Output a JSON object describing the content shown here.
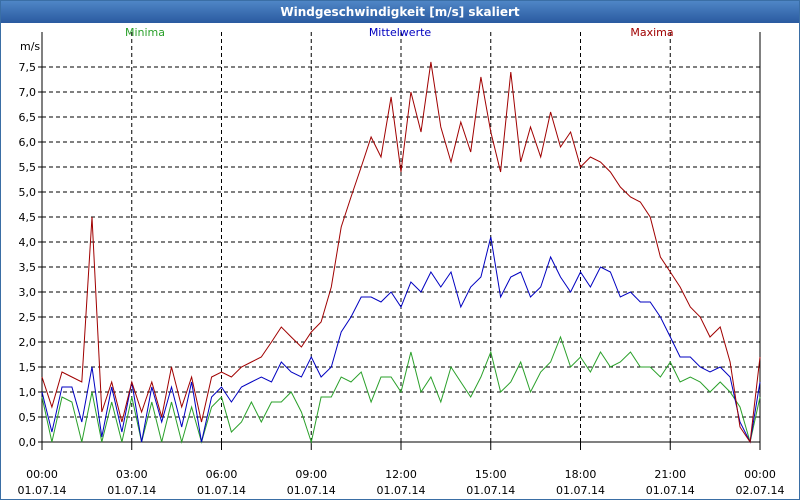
{
  "window": {
    "title": "Windgeschwindigkeit [m/s] skaliert"
  },
  "chart_data": {
    "type": "line",
    "title": "Windgeschwindigkeit [m/s] skaliert",
    "ylabel": "m/s",
    "xlabel": "",
    "ylim": [
      0,
      8
    ],
    "xlim": [
      0,
      24
    ],
    "grid": true,
    "y_ticks": [
      "0,0",
      "0,5",
      "1,0",
      "1,5",
      "2,0",
      "2,5",
      "3,0",
      "3,5",
      "4,0",
      "4,5",
      "5,0",
      "5,5",
      "6,0",
      "6,5",
      "7,0",
      "7,5"
    ],
    "x_ticks": [
      {
        "time": "00:00",
        "date": "01.07.14"
      },
      {
        "time": "03:00",
        "date": "01.07.14"
      },
      {
        "time": "06:00",
        "date": "01.07.14"
      },
      {
        "time": "09:00",
        "date": "01.07.14"
      },
      {
        "time": "12:00",
        "date": "01.07.14"
      },
      {
        "time": "15:00",
        "date": "01.07.14"
      },
      {
        "time": "18:00",
        "date": "01.07.14"
      },
      {
        "time": "21:00",
        "date": "01.07.14"
      },
      {
        "time": "00:00",
        "date": "02.07.14"
      }
    ],
    "series": [
      {
        "name": "Minima",
        "color": "#2aa02a",
        "x": [
          0,
          0.33,
          0.67,
          1,
          1.33,
          1.67,
          2,
          2.33,
          2.67,
          3,
          3.33,
          3.67,
          4,
          4.33,
          4.67,
          5,
          5.33,
          5.67,
          6,
          6.33,
          6.67,
          7,
          7.33,
          7.67,
          8,
          8.33,
          8.67,
          9,
          9.33,
          9.67,
          10,
          10.33,
          10.67,
          11,
          11.33,
          11.67,
          12,
          12.33,
          12.67,
          13,
          13.33,
          13.67,
          14,
          14.33,
          14.67,
          15,
          15.33,
          15.67,
          16,
          16.33,
          16.67,
          17,
          17.33,
          17.67,
          18,
          18.33,
          18.67,
          19,
          19.33,
          19.67,
          20,
          20.33,
          20.67,
          21,
          21.33,
          21.67,
          22,
          22.33,
          22.67,
          23,
          23.33,
          23.67,
          24
        ],
        "values": [
          0.9,
          0,
          0.9,
          0.8,
          0,
          1,
          0,
          0.8,
          0,
          0.9,
          0,
          0.8,
          0,
          0.8,
          0,
          0.7,
          0,
          0.7,
          0.9,
          0.2,
          0.4,
          0.8,
          0.4,
          0.8,
          0.8,
          1,
          0.6,
          0,
          0.9,
          0.9,
          1.3,
          1.2,
          1.4,
          0.8,
          1.3,
          1.3,
          1,
          1.8,
          1,
          1.3,
          0.8,
          1.5,
          1.2,
          0.9,
          1.3,
          1.8,
          1,
          1.2,
          1.6,
          1,
          1.4,
          1.6,
          2.1,
          1.5,
          1.7,
          1.4,
          1.8,
          1.5,
          1.6,
          1.8,
          1.5,
          1.5,
          1.3,
          1.6,
          1.2,
          1.3,
          1.2,
          1,
          1.2,
          1,
          0.7,
          0,
          0.9
        ]
      },
      {
        "name": "Mittelwerte",
        "color": "#0000c0",
        "x": [
          0,
          0.33,
          0.67,
          1,
          1.33,
          1.67,
          2,
          2.33,
          2.67,
          3,
          3.33,
          3.67,
          4,
          4.33,
          4.67,
          5,
          5.33,
          5.67,
          6,
          6.33,
          6.67,
          7,
          7.33,
          7.67,
          8,
          8.33,
          8.67,
          9,
          9.33,
          9.67,
          10,
          10.33,
          10.67,
          11,
          11.33,
          11.67,
          12,
          12.33,
          12.67,
          13,
          13.33,
          13.67,
          14,
          14.33,
          14.67,
          15,
          15.33,
          15.67,
          16,
          16.33,
          16.67,
          17,
          17.33,
          17.67,
          18,
          18.33,
          18.67,
          19,
          19.33,
          19.67,
          20,
          20.33,
          20.67,
          21,
          21.33,
          21.67,
          22,
          22.33,
          22.67,
          23,
          23.33,
          23.67,
          24
        ],
        "values": [
          1,
          0.2,
          1.1,
          1.1,
          0.4,
          1.5,
          0.1,
          1.1,
          0.2,
          1.2,
          0,
          1.1,
          0.4,
          1.1,
          0.3,
          1.2,
          0,
          0.9,
          1.1,
          0.8,
          1.1,
          1.2,
          1.3,
          1.2,
          1.6,
          1.4,
          1.3,
          1.7,
          1.3,
          1.5,
          2.2,
          2.5,
          2.9,
          2.9,
          2.8,
          3,
          2.7,
          3.2,
          3,
          3.4,
          3.1,
          3.4,
          2.7,
          3.1,
          3.3,
          4.1,
          2.9,
          3.3,
          3.4,
          2.9,
          3.1,
          3.7,
          3.3,
          3.0,
          3.4,
          3.1,
          3.5,
          3.4,
          2.9,
          3.0,
          2.8,
          2.8,
          2.5,
          2.1,
          1.7,
          1.7,
          1.5,
          1.4,
          1.5,
          1.3,
          0.4,
          0,
          1.2
        ]
      },
      {
        "name": "Maxima",
        "color": "#a00000",
        "x": [
          0,
          0.33,
          0.67,
          1,
          1.33,
          1.67,
          2,
          2.33,
          2.67,
          3,
          3.33,
          3.67,
          4,
          4.33,
          4.67,
          5,
          5.33,
          5.67,
          6,
          6.33,
          6.67,
          7,
          7.33,
          7.67,
          8,
          8.33,
          8.67,
          9,
          9.33,
          9.67,
          10,
          10.33,
          10.67,
          11,
          11.33,
          11.67,
          12,
          12.33,
          12.67,
          13,
          13.33,
          13.67,
          14,
          14.33,
          14.67,
          15,
          15.33,
          15.67,
          16,
          16.33,
          16.67,
          17,
          17.33,
          17.67,
          18,
          18.33,
          18.67,
          19,
          19.33,
          19.67,
          20,
          20.33,
          20.67,
          21,
          21.33,
          21.67,
          22,
          22.33,
          22.67,
          23,
          23.33,
          23.67,
          24
        ],
        "values": [
          1.3,
          0.7,
          1.4,
          1.3,
          1.2,
          4.5,
          0.6,
          1.2,
          0.4,
          1.2,
          0.6,
          1.2,
          0.5,
          1.5,
          0.7,
          1.3,
          0.4,
          1.3,
          1.4,
          1.3,
          1.5,
          1.6,
          1.7,
          2,
          2.3,
          2.1,
          1.9,
          2.2,
          2.4,
          3.1,
          4.3,
          4.9,
          5.5,
          6.1,
          5.7,
          6.9,
          5.4,
          7,
          6.2,
          7.6,
          6.3,
          5.6,
          6.4,
          5.8,
          7.3,
          6.2,
          5.4,
          7.4,
          5.6,
          6.3,
          5.7,
          6.6,
          5.9,
          6.2,
          5.5,
          5.7,
          5.6,
          5.4,
          5.1,
          4.9,
          4.8,
          4.5,
          3.7,
          3.4,
          3.1,
          2.7,
          2.5,
          2.1,
          2.3,
          1.6,
          0.3,
          0,
          1.7
        ]
      }
    ]
  }
}
